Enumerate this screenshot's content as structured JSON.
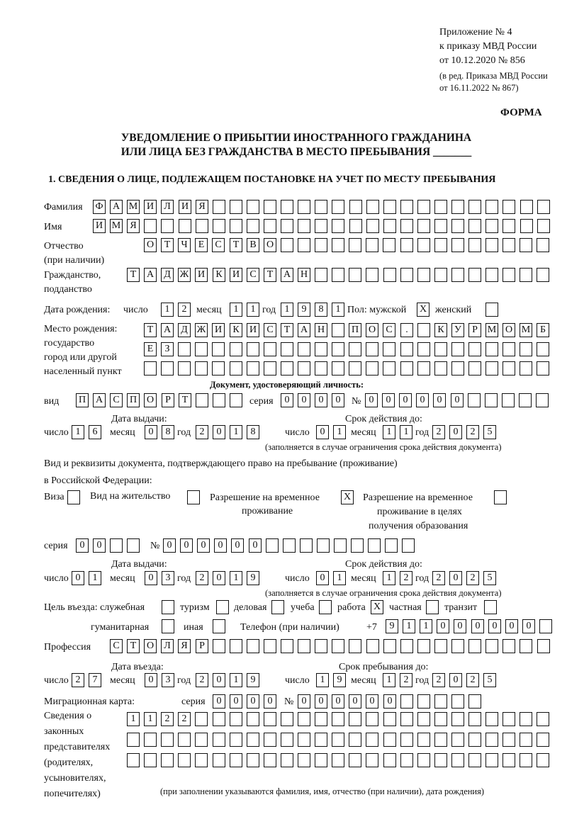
{
  "header": {
    "appendix": "Приложение № 4",
    "order": "к приказу МВД России",
    "order_date": "от 10.12.2020 № 856",
    "revision1": "(в ред. Приказа МВД России",
    "revision2": "от 16.11.2022 № 867)",
    "form_label": "ФОРМА",
    "title1": "УВЕДОМЛЕНИЕ О ПРИБЫТИИ ИНОСТРАННОГО ГРАЖДАНИНА",
    "title2": "ИЛИ ЛИЦА БЕЗ ГРАЖДАНСТВА В МЕСТО ПРЕБЫВАНИЯ _______",
    "section1": "1. СВЕДЕНИЯ О ЛИЦЕ, ПОДЛЕЖАЩЕМ ПОСТАНОВКЕ НА УЧЕТ ПО МЕСТУ ПРЕБЫВАНИЯ"
  },
  "labels": {
    "surname": "Фамилия",
    "name": "Имя",
    "patronymic1": "Отчество",
    "patronymic2": "(при наличии)",
    "citizenship1": "Гражданство,",
    "citizenship2": "подданство",
    "birth_date": "Дата рождения:",
    "day": "число",
    "month": "месяц",
    "year": "год",
    "sex_male": "Пол: мужской",
    "sex_female": "женский",
    "birthplace1": "Место рождения:",
    "birthplace2": "государство",
    "birthplace3": "город или другой",
    "birthplace4": "населенный пункт",
    "id_doc": "Документ, удостоверяющий личность:",
    "kind": "вид",
    "series": "серия",
    "number": "№",
    "issue_date": "Дата выдачи:",
    "valid_until": "Срок действия до:",
    "validity_note": "(заполняется в случае ограничения срока действия документа)",
    "right_doc1": "Вид и реквизиты документа, подтверждающего право на пребывание (проживание)",
    "right_doc2": "в Российской Федерации:",
    "visa": "Виза",
    "residence_permit": "Вид на жительство",
    "temp_residence1": "Разрешение на временное",
    "temp_residence2": "проживание",
    "temp_edu1": "Разрешение на временное",
    "temp_edu2": "проживание в целях",
    "temp_edu3": "получения образования",
    "purpose": "Цель въезда: служебная",
    "tourism": "туризм",
    "business": "деловая",
    "study": "учеба",
    "work": "работа",
    "private": "частная",
    "transit": "транзит",
    "humanitarian": "гуманитарная",
    "other": "иная",
    "phone": "Телефон (при наличии)",
    "phone_prefix": "+7",
    "profession": "Профессия",
    "entry_date": "Дата въезда:",
    "stay_until": "Срок пребывания до:",
    "migration_card": "Миграционная карта:",
    "reps1": "Сведения о",
    "reps2": "законных",
    "reps3": "представителях",
    "reps4": "(родителях,",
    "reps5": "усыновителях,",
    "reps6": "попечителях)",
    "reps_note": "(при заполнении указываются фамилия, имя, отчество (при наличии), дата рождения)"
  },
  "fields": {
    "surname": "ФАМИЛИЯ",
    "name": "ИМЯ",
    "patronymic": "ОТЧЕСТВО",
    "citizenship": "ТАДЖИКИСТАН",
    "birth_day": "12",
    "birth_month": "11",
    "birth_year": "1981",
    "sex_male": "X",
    "sex_female": "",
    "birthplace_line1": "ТАДЖИКИСТАН ПОС. КУРМОМБ",
    "birthplace_line2": "ЕЗ",
    "birthplace_line3": "",
    "id_kind": "ПАСПОРТ",
    "id_series": "0000",
    "id_number": "000000",
    "id_issue_day": "16",
    "id_issue_month": "08",
    "id_issue_year": "2018",
    "id_valid_day": "01",
    "id_valid_month": "11",
    "id_valid_year": "2025",
    "visa": "",
    "residence_permit": "",
    "temp_residence": "X",
    "temp_edu": "",
    "right_series": "00",
    "right_number": "000000",
    "right_issue_day": "01",
    "right_issue_month": "03",
    "right_issue_year": "2019",
    "right_valid_day": "01",
    "right_valid_month": "12",
    "right_valid_year": "2025",
    "purpose_service": "",
    "purpose_tourism": "",
    "purpose_business": "",
    "purpose_study": "",
    "purpose_work": "X",
    "purpose_private": "",
    "purpose_transit": "",
    "purpose_humanitarian": "",
    "purpose_other": "",
    "phone": "911000000",
    "profession": "СТОЛЯР",
    "entry_day": "27",
    "entry_month": "03",
    "entry_year": "2019",
    "stay_day": "19",
    "stay_month": "12",
    "stay_year": "2025",
    "mig_series": "0000",
    "mig_number": "000000",
    "reps_line1": "1122",
    "reps_line2": "",
    "reps_line3": ""
  }
}
